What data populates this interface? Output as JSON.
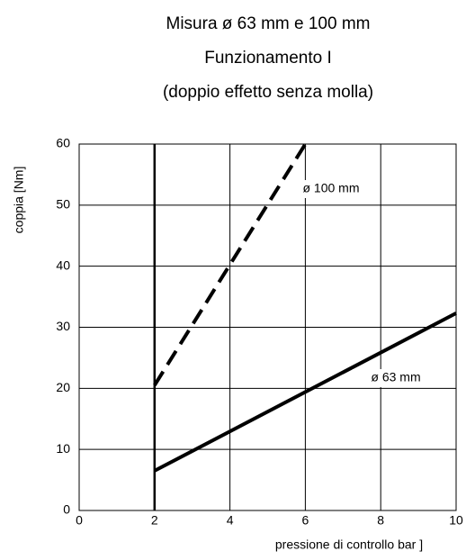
{
  "chart_data": {
    "type": "line",
    "title": [
      "Misura ø 63 mm e 100 mm",
      "Funzionamento I",
      "(doppio effetto senza molla)"
    ],
    "x_label": "pressione di controllo bar ]",
    "y_label": "coppia [Nm]",
    "xlim": [
      0,
      10
    ],
    "xticks": [
      0,
      2,
      4,
      6,
      8,
      10
    ],
    "ylim": [
      0,
      60
    ],
    "yticks": [
      0,
      10,
      20,
      30,
      40,
      50,
      60
    ],
    "grid": true,
    "series": [
      {
        "name": "ø 100 mm",
        "color": "#000000",
        "dashed": true,
        "x": [
          2,
          6
        ],
        "values": [
          20.5,
          60
        ]
      },
      {
        "name": "ø 63 mm",
        "color": "#000000",
        "dashed": false,
        "x": [
          2,
          10
        ],
        "values": [
          6.5,
          32.3
        ]
      }
    ]
  }
}
